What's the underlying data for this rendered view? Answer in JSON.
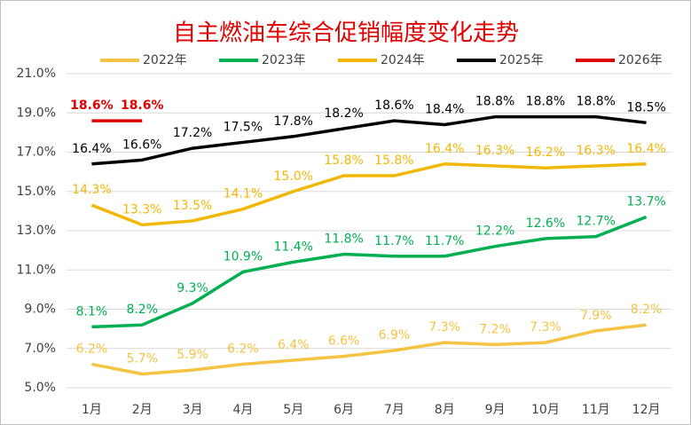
{
  "chart_data": {
    "type": "line",
    "title": "自主燃油车综合促销幅度变化走势",
    "categories": [
      "1月",
      "2月",
      "3月",
      "4月",
      "5月",
      "6月",
      "7月",
      "8月",
      "9月",
      "10月",
      "11月",
      "12月"
    ],
    "series": [
      {
        "name": "2022年",
        "color": "#F5C342",
        "values": [
          6.2,
          5.7,
          5.9,
          6.2,
          6.4,
          6.6,
          6.9,
          7.3,
          7.2,
          7.3,
          7.9,
          8.2
        ],
        "value_labels": [
          "6.2%",
          "5.7%",
          "5.9%",
          "6.2%",
          "6.4%",
          "6.6%",
          "6.9%",
          "7.3%",
          "7.2%",
          "7.3%",
          "7.9%",
          "8.2%"
        ]
      },
      {
        "name": "2023年",
        "color": "#00B050",
        "values": [
          8.1,
          8.2,
          9.3,
          10.9,
          11.4,
          11.8,
          11.7,
          11.7,
          12.2,
          12.6,
          12.7,
          13.7
        ],
        "value_labels": [
          "8.1%",
          "8.2%",
          "9.3%",
          "10.9%",
          "11.4%",
          "11.8%",
          "11.7%",
          "11.7%",
          "12.2%",
          "12.6%",
          "12.7%",
          "13.7%"
        ]
      },
      {
        "name": "2024年",
        "color": "#F2B705",
        "values": [
          14.3,
          13.3,
          13.5,
          14.1,
          15.0,
          15.8,
          15.8,
          16.4,
          16.3,
          16.2,
          16.3,
          16.4
        ],
        "value_labels": [
          "14.3%",
          "13.3%",
          "13.5%",
          "14.1%",
          "15.0%",
          "15.8%",
          "15.8%",
          "16.4%",
          "16.3%",
          "16.2%",
          "16.3%",
          "16.4%"
        ]
      },
      {
        "name": "2025年",
        "color": "#000000",
        "values": [
          16.4,
          16.6,
          17.2,
          17.5,
          17.8,
          18.2,
          18.6,
          18.4,
          18.8,
          18.8,
          18.8,
          18.5
        ],
        "value_labels": [
          "16.4%",
          "16.6%",
          "17.2%",
          "17.5%",
          "17.8%",
          "18.2%",
          "18.6%",
          "18.4%",
          "18.8%",
          "18.8%",
          "18.8%",
          "18.5%"
        ]
      },
      {
        "name": "2026年",
        "color": "#E00000",
        "values": [
          18.6,
          18.6,
          null,
          null,
          null,
          null,
          null,
          null,
          null,
          null,
          null,
          null
        ],
        "value_labels": [
          "18.6%",
          "18.6%",
          null,
          null,
          null,
          null,
          null,
          null,
          null,
          null,
          null,
          null
        ]
      }
    ],
    "ylim": [
      5,
      21
    ],
    "yticks": [
      {
        "value": 5,
        "label": "5.0%"
      },
      {
        "value": 7,
        "label": "7.0%"
      },
      {
        "value": 9,
        "label": "9.0%"
      },
      {
        "value": 11,
        "label": "11.0%"
      },
      {
        "value": 13,
        "label": "13.0%"
      },
      {
        "value": 15,
        "label": "15.0%"
      },
      {
        "value": 17,
        "label": "17.0%"
      },
      {
        "value": 19,
        "label": "19.0%"
      },
      {
        "value": 21,
        "label": "21.0%"
      }
    ],
    "grid": true,
    "legend": "top"
  }
}
